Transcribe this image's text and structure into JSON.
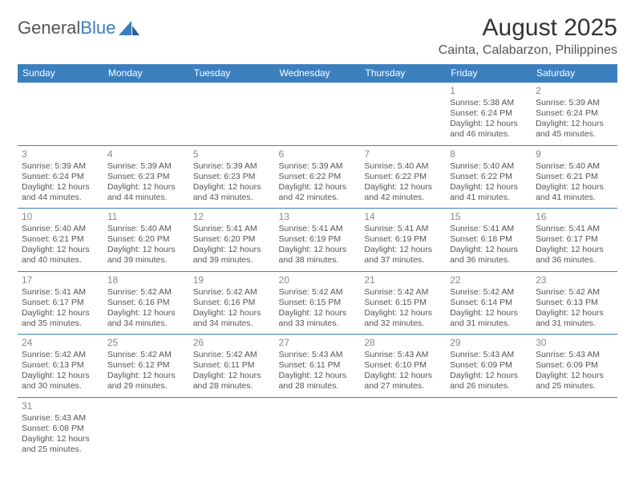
{
  "logo": {
    "word1": "General",
    "word2": "Blue"
  },
  "title": "August 2025",
  "location": "Cainta, Calabarzon, Philippines",
  "colors": {
    "header_bg": "#3b7fbf",
    "header_text": "#ffffff",
    "cell_border": "#3b7fbf",
    "body_text": "#555555",
    "daynum": "#888888",
    "background": "#ffffff"
  },
  "weekdays": [
    "Sunday",
    "Monday",
    "Tuesday",
    "Wednesday",
    "Thursday",
    "Friday",
    "Saturday"
  ],
  "weeks": [
    [
      null,
      null,
      null,
      null,
      null,
      {
        "day": "1",
        "sunrise": "Sunrise: 5:38 AM",
        "sunset": "Sunset: 6:24 PM",
        "dl1": "Daylight: 12 hours",
        "dl2": "and 46 minutes."
      },
      {
        "day": "2",
        "sunrise": "Sunrise: 5:39 AM",
        "sunset": "Sunset: 6:24 PM",
        "dl1": "Daylight: 12 hours",
        "dl2": "and 45 minutes."
      }
    ],
    [
      {
        "day": "3",
        "sunrise": "Sunrise: 5:39 AM",
        "sunset": "Sunset: 6:24 PM",
        "dl1": "Daylight: 12 hours",
        "dl2": "and 44 minutes."
      },
      {
        "day": "4",
        "sunrise": "Sunrise: 5:39 AM",
        "sunset": "Sunset: 6:23 PM",
        "dl1": "Daylight: 12 hours",
        "dl2": "and 44 minutes."
      },
      {
        "day": "5",
        "sunrise": "Sunrise: 5:39 AM",
        "sunset": "Sunset: 6:23 PM",
        "dl1": "Daylight: 12 hours",
        "dl2": "and 43 minutes."
      },
      {
        "day": "6",
        "sunrise": "Sunrise: 5:39 AM",
        "sunset": "Sunset: 6:22 PM",
        "dl1": "Daylight: 12 hours",
        "dl2": "and 42 minutes."
      },
      {
        "day": "7",
        "sunrise": "Sunrise: 5:40 AM",
        "sunset": "Sunset: 6:22 PM",
        "dl1": "Daylight: 12 hours",
        "dl2": "and 42 minutes."
      },
      {
        "day": "8",
        "sunrise": "Sunrise: 5:40 AM",
        "sunset": "Sunset: 6:22 PM",
        "dl1": "Daylight: 12 hours",
        "dl2": "and 41 minutes."
      },
      {
        "day": "9",
        "sunrise": "Sunrise: 5:40 AM",
        "sunset": "Sunset: 6:21 PM",
        "dl1": "Daylight: 12 hours",
        "dl2": "and 41 minutes."
      }
    ],
    [
      {
        "day": "10",
        "sunrise": "Sunrise: 5:40 AM",
        "sunset": "Sunset: 6:21 PM",
        "dl1": "Daylight: 12 hours",
        "dl2": "and 40 minutes."
      },
      {
        "day": "11",
        "sunrise": "Sunrise: 5:40 AM",
        "sunset": "Sunset: 6:20 PM",
        "dl1": "Daylight: 12 hours",
        "dl2": "and 39 minutes."
      },
      {
        "day": "12",
        "sunrise": "Sunrise: 5:41 AM",
        "sunset": "Sunset: 6:20 PM",
        "dl1": "Daylight: 12 hours",
        "dl2": "and 39 minutes."
      },
      {
        "day": "13",
        "sunrise": "Sunrise: 5:41 AM",
        "sunset": "Sunset: 6:19 PM",
        "dl1": "Daylight: 12 hours",
        "dl2": "and 38 minutes."
      },
      {
        "day": "14",
        "sunrise": "Sunrise: 5:41 AM",
        "sunset": "Sunset: 6:19 PM",
        "dl1": "Daylight: 12 hours",
        "dl2": "and 37 minutes."
      },
      {
        "day": "15",
        "sunrise": "Sunrise: 5:41 AM",
        "sunset": "Sunset: 6:18 PM",
        "dl1": "Daylight: 12 hours",
        "dl2": "and 36 minutes."
      },
      {
        "day": "16",
        "sunrise": "Sunrise: 5:41 AM",
        "sunset": "Sunset: 6:17 PM",
        "dl1": "Daylight: 12 hours",
        "dl2": "and 36 minutes."
      }
    ],
    [
      {
        "day": "17",
        "sunrise": "Sunrise: 5:41 AM",
        "sunset": "Sunset: 6:17 PM",
        "dl1": "Daylight: 12 hours",
        "dl2": "and 35 minutes."
      },
      {
        "day": "18",
        "sunrise": "Sunrise: 5:42 AM",
        "sunset": "Sunset: 6:16 PM",
        "dl1": "Daylight: 12 hours",
        "dl2": "and 34 minutes."
      },
      {
        "day": "19",
        "sunrise": "Sunrise: 5:42 AM",
        "sunset": "Sunset: 6:16 PM",
        "dl1": "Daylight: 12 hours",
        "dl2": "and 34 minutes."
      },
      {
        "day": "20",
        "sunrise": "Sunrise: 5:42 AM",
        "sunset": "Sunset: 6:15 PM",
        "dl1": "Daylight: 12 hours",
        "dl2": "and 33 minutes."
      },
      {
        "day": "21",
        "sunrise": "Sunrise: 5:42 AM",
        "sunset": "Sunset: 6:15 PM",
        "dl1": "Daylight: 12 hours",
        "dl2": "and 32 minutes."
      },
      {
        "day": "22",
        "sunrise": "Sunrise: 5:42 AM",
        "sunset": "Sunset: 6:14 PM",
        "dl1": "Daylight: 12 hours",
        "dl2": "and 31 minutes."
      },
      {
        "day": "23",
        "sunrise": "Sunrise: 5:42 AM",
        "sunset": "Sunset: 6:13 PM",
        "dl1": "Daylight: 12 hours",
        "dl2": "and 31 minutes."
      }
    ],
    [
      {
        "day": "24",
        "sunrise": "Sunrise: 5:42 AM",
        "sunset": "Sunset: 6:13 PM",
        "dl1": "Daylight: 12 hours",
        "dl2": "and 30 minutes."
      },
      {
        "day": "25",
        "sunrise": "Sunrise: 5:42 AM",
        "sunset": "Sunset: 6:12 PM",
        "dl1": "Daylight: 12 hours",
        "dl2": "and 29 minutes."
      },
      {
        "day": "26",
        "sunrise": "Sunrise: 5:42 AM",
        "sunset": "Sunset: 6:11 PM",
        "dl1": "Daylight: 12 hours",
        "dl2": "and 28 minutes."
      },
      {
        "day": "27",
        "sunrise": "Sunrise: 5:43 AM",
        "sunset": "Sunset: 6:11 PM",
        "dl1": "Daylight: 12 hours",
        "dl2": "and 28 minutes."
      },
      {
        "day": "28",
        "sunrise": "Sunrise: 5:43 AM",
        "sunset": "Sunset: 6:10 PM",
        "dl1": "Daylight: 12 hours",
        "dl2": "and 27 minutes."
      },
      {
        "day": "29",
        "sunrise": "Sunrise: 5:43 AM",
        "sunset": "Sunset: 6:09 PM",
        "dl1": "Daylight: 12 hours",
        "dl2": "and 26 minutes."
      },
      {
        "day": "30",
        "sunrise": "Sunrise: 5:43 AM",
        "sunset": "Sunset: 6:09 PM",
        "dl1": "Daylight: 12 hours",
        "dl2": "and 25 minutes."
      }
    ],
    [
      {
        "day": "31",
        "sunrise": "Sunrise: 5:43 AM",
        "sunset": "Sunset: 6:08 PM",
        "dl1": "Daylight: 12 hours",
        "dl2": "and 25 minutes."
      },
      null,
      null,
      null,
      null,
      null,
      null
    ]
  ]
}
